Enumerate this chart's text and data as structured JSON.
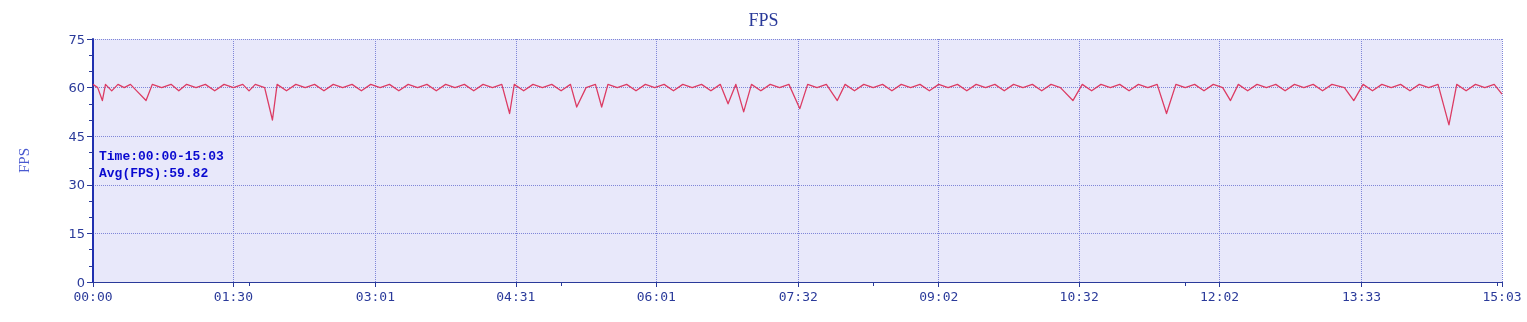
{
  "chart_data": {
    "type": "line",
    "title": "FPS",
    "ylabel": "FPS",
    "annotations": [
      "Time:00:00-15:03",
      "Avg(FPS):59.82"
    ],
    "x": [
      0,
      3,
      6,
      8,
      12,
      16,
      20,
      24,
      28,
      34,
      38,
      44,
      50,
      55,
      60,
      66,
      72,
      78,
      84,
      90,
      96,
      100,
      104,
      110,
      115,
      118,
      124,
      130,
      136,
      142,
      148,
      154,
      160,
      166,
      172,
      178,
      184,
      190,
      196,
      202,
      208,
      214,
      220,
      226,
      232,
      238,
      244,
      250,
      256,
      262,
      267,
      270,
      276,
      282,
      288,
      294,
      300,
      306,
      310,
      316,
      322,
      326,
      330,
      336,
      342,
      348,
      354,
      360,
      366,
      372,
      378,
      384,
      390,
      396,
      402,
      407,
      412,
      417,
      422,
      428,
      434,
      440,
      446,
      453,
      458,
      464,
      470,
      477,
      482,
      488,
      494,
      500,
      506,
      512,
      518,
      524,
      530,
      536,
      542,
      548,
      554,
      560,
      566,
      572,
      578,
      584,
      590,
      596,
      602,
      608,
      614,
      620,
      628,
      634,
      640,
      646,
      652,
      658,
      664,
      670,
      676,
      682,
      688,
      694,
      700,
      706,
      712,
      718,
      724,
      729,
      734,
      740,
      746,
      752,
      758,
      764,
      770,
      776,
      782,
      788,
      794,
      802,
      808,
      814,
      820,
      826,
      832,
      838,
      844,
      850,
      856,
      862,
      869,
      874,
      880,
      886,
      892,
      898,
      903
    ],
    "series": [
      {
        "color": "#dc3c64",
        "values": [
          61,
          60,
          56,
          61,
          59,
          61,
          60,
          61,
          59,
          56,
          61,
          60,
          61,
          59,
          61,
          60,
          61,
          59,
          61,
          60,
          61,
          59,
          61,
          60,
          50,
          61,
          59,
          61,
          60,
          61,
          59,
          61,
          60,
          61,
          59,
          61,
          60,
          61,
          59,
          61,
          60,
          61,
          59,
          61,
          60,
          61,
          59,
          61,
          60,
          61,
          52,
          61,
          59,
          61,
          60,
          61,
          59,
          61,
          54,
          60,
          61,
          54,
          61,
          60,
          61,
          59,
          61,
          60,
          61,
          59,
          61,
          60,
          61,
          59,
          61,
          55,
          61,
          52.5,
          61,
          59,
          61,
          60,
          61,
          53.5,
          61,
          60,
          61,
          56,
          61,
          59,
          61,
          60,
          61,
          59,
          61,
          60,
          61,
          59,
          61,
          60,
          61,
          59,
          61,
          60,
          61,
          59,
          61,
          60,
          61,
          59,
          61,
          60,
          56,
          61,
          59,
          61,
          60,
          61,
          59,
          61,
          60,
          61,
          52,
          61,
          60,
          61,
          59,
          61,
          60,
          56,
          61,
          59,
          61,
          60,
          61,
          59,
          61,
          60,
          61,
          59,
          61,
          60,
          56,
          61,
          59,
          61,
          60,
          61,
          59,
          61,
          60,
          61,
          48.5,
          61,
          59,
          61,
          60,
          61,
          58
        ]
      }
    ],
    "xlim": [
      0,
      903
    ],
    "xticks": [
      {
        "value": 0,
        "label": "00:00"
      },
      {
        "value": 90,
        "label": "01:30"
      },
      {
        "value": 181,
        "label": "03:01"
      },
      {
        "value": 271,
        "label": "04:31"
      },
      {
        "value": 361,
        "label": "06:01"
      },
      {
        "value": 452,
        "label": "07:32"
      },
      {
        "value": 542,
        "label": "09:02"
      },
      {
        "value": 632,
        "label": "10:32"
      },
      {
        "value": 722,
        "label": "12:02"
      },
      {
        "value": 813,
        "label": "13:33"
      },
      {
        "value": 903,
        "label": "15:03"
      }
    ],
    "ylim": [
      0,
      75
    ],
    "yticks": [
      0,
      15,
      30,
      45,
      60,
      75
    ],
    "grid": true,
    "marker": "none",
    "line_style": "solid"
  }
}
